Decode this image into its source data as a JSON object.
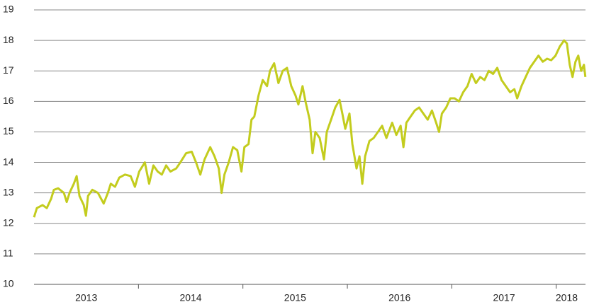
{
  "chart_data": {
    "type": "line",
    "color": "#c3cc1e",
    "x": [
      2013.0,
      2013.027,
      2013.082,
      2013.122,
      2013.163,
      2013.19,
      2013.231,
      2013.286,
      2013.313,
      2013.34,
      2013.381,
      2013.408,
      2013.435,
      2013.476,
      2013.497,
      2013.517,
      2013.558,
      2013.612,
      2013.667,
      2013.707,
      2013.735,
      2013.776,
      2013.816,
      2013.871,
      2013.925,
      2013.966,
      2014.007,
      2014.061,
      2014.102,
      2014.143,
      2014.184,
      2014.224,
      2014.265,
      2014.306,
      2014.361,
      2014.401,
      2014.456,
      2014.51,
      2014.551,
      2014.592,
      2014.633,
      2014.687,
      2014.728,
      2014.769,
      2014.796,
      2014.823,
      2014.864,
      2014.905,
      2014.946,
      2014.986,
      2015.014,
      2015.054,
      2015.082,
      2015.109,
      2015.15,
      2015.19,
      2015.231,
      2015.259,
      2015.299,
      2015.34,
      2015.381,
      2015.422,
      2015.463,
      2015.503,
      2015.531,
      2015.571,
      2015.599,
      2015.639,
      2015.667,
      2015.694,
      2015.735,
      2015.776,
      2015.803,
      2015.844,
      2015.884,
      2015.925,
      2015.952,
      2015.98,
      2016.02,
      2016.048,
      2016.088,
      2016.116,
      2016.143,
      2016.17,
      2016.211,
      2016.252,
      2016.293,
      2016.333,
      2016.374,
      2016.429,
      2016.469,
      2016.51,
      2016.537,
      2016.565,
      2016.605,
      2016.646,
      2016.687,
      2016.728,
      2016.769,
      2016.81,
      2016.85,
      2016.878,
      2016.905,
      2016.946,
      2016.986,
      2017.027,
      2017.068,
      2017.109,
      2017.15,
      2017.19,
      2017.231,
      2017.272,
      2017.313,
      2017.354,
      2017.395,
      2017.435,
      2017.476,
      2017.517,
      2017.558,
      2017.599,
      2017.626,
      2017.667,
      2017.707,
      2017.748,
      2017.789,
      2017.83,
      2017.871,
      2017.912,
      2017.952,
      2017.993,
      2018.034,
      2018.075,
      2018.102,
      2018.129,
      2018.156,
      2018.184,
      2018.211,
      2018.238,
      2018.265,
      2018.279
    ],
    "values": [
      12.2,
      12.5,
      12.6,
      12.5,
      12.8,
      13.1,
      13.15,
      13.0,
      12.7,
      13.0,
      13.3,
      13.55,
      12.9,
      12.6,
      12.25,
      12.9,
      13.1,
      13.0,
      12.65,
      13.0,
      13.3,
      13.2,
      13.5,
      13.6,
      13.55,
      13.2,
      13.7,
      14.0,
      13.3,
      13.9,
      13.7,
      13.6,
      13.9,
      13.7,
      13.8,
      14.0,
      14.3,
      14.35,
      14.0,
      13.6,
      14.1,
      14.5,
      14.2,
      13.8,
      13.0,
      13.6,
      14.0,
      14.5,
      14.4,
      13.7,
      14.5,
      14.6,
      15.4,
      15.5,
      16.2,
      16.7,
      16.5,
      17.0,
      17.25,
      16.6,
      17.0,
      17.1,
      16.5,
      16.2,
      15.9,
      16.5,
      16.0,
      15.4,
      14.3,
      15.0,
      14.8,
      14.1,
      15.0,
      15.4,
      15.8,
      16.05,
      15.6,
      15.1,
      15.6,
      14.6,
      13.8,
      14.2,
      13.3,
      14.2,
      14.7,
      14.8,
      15.0,
      15.2,
      14.8,
      15.3,
      14.9,
      15.2,
      14.5,
      15.3,
      15.5,
      15.7,
      15.8,
      15.6,
      15.4,
      15.7,
      15.3,
      15.0,
      15.6,
      15.8,
      16.1,
      16.1,
      16.0,
      16.3,
      16.5,
      16.9,
      16.6,
      16.8,
      16.7,
      17.0,
      16.9,
      17.1,
      16.7,
      16.5,
      16.3,
      16.4,
      16.1,
      16.5,
      16.8,
      17.1,
      17.3,
      17.5,
      17.3,
      17.4,
      17.35,
      17.5,
      17.8,
      18.0,
      17.9,
      17.2,
      16.8,
      17.3,
      17.5,
      17.0,
      17.2,
      16.8
    ],
    "xlim": [
      2013,
      2018.28
    ],
    "xticks": [
      2014,
      2015,
      2016,
      2017,
      2018
    ],
    "xtick_labels": [
      {
        "value": 2013.5,
        "label": "2013"
      },
      {
        "value": 2014.5,
        "label": "2014"
      },
      {
        "value": 2015.5,
        "label": "2015"
      },
      {
        "value": 2016.5,
        "label": "2016"
      },
      {
        "value": 2017.5,
        "label": "2017"
      },
      {
        "value": 2018.1,
        "label": "2018"
      }
    ],
    "ylim": [
      10,
      19
    ],
    "yticks": [
      10,
      11,
      12,
      13,
      14,
      15,
      16,
      17,
      18,
      19
    ],
    "grid": true
  }
}
